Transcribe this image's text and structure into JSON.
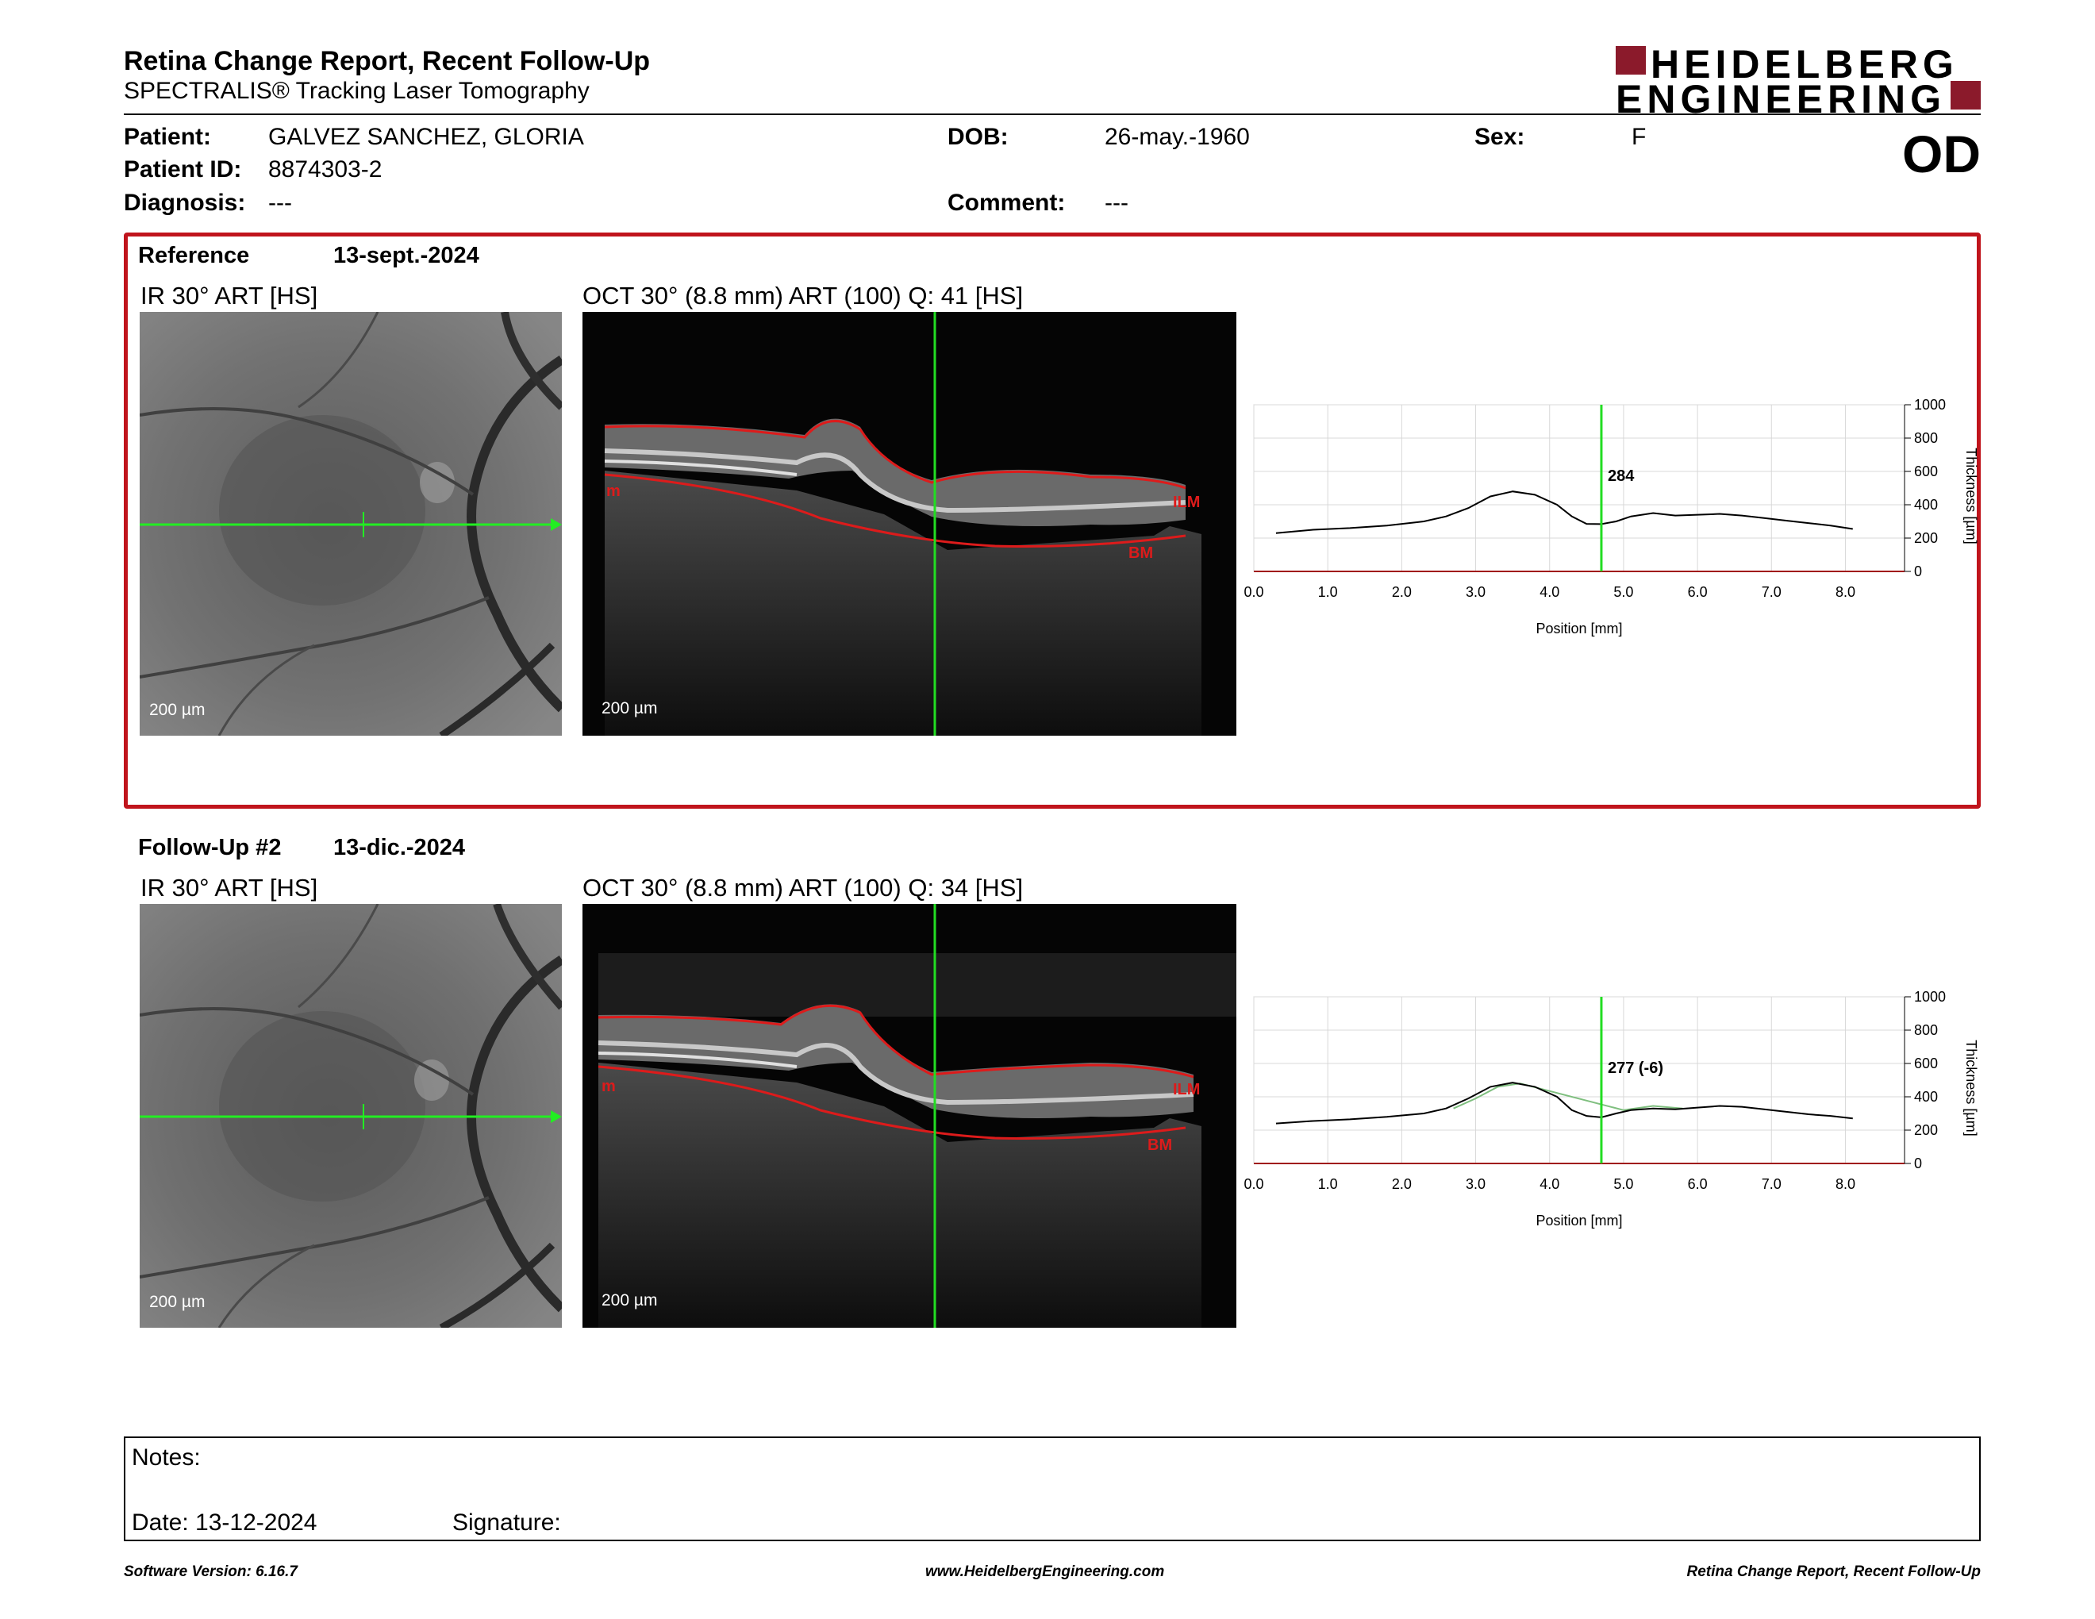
{
  "header": {
    "title": "Retina Change Report, Recent Follow-Up",
    "subtitle": "SPECTRALIS® Tracking Laser Tomography",
    "logo_line1": "HEIDELBERG",
    "logo_line2": "ENGINEERING",
    "eye": "OD"
  },
  "patient": {
    "name_label": "Patient:",
    "name": "GALVEZ SANCHEZ, GLORIA",
    "id_label": "Patient ID:",
    "id": "8874303-2",
    "diagnosis_label": "Diagnosis:",
    "diagnosis": "---",
    "dob_label": "DOB:",
    "dob": "26-may.-1960",
    "comment_label": "Comment:",
    "comment": "---",
    "sex_label": "Sex:",
    "sex": "F"
  },
  "reference": {
    "label": "Reference",
    "date": "13-sept.-2024",
    "ir_label": "IR 30° ART [HS]",
    "oct_label": "OCT 30° (8.8 mm) ART (100) Q: 41 [HS]",
    "scale_ir": "200 µm",
    "scale_oct": "200 µm",
    "layer_top": "ILM",
    "layer_bottom": "BM",
    "layer_left": "m",
    "value_label": "284"
  },
  "followup": {
    "label": "Follow-Up #2",
    "date": "13-dic.-2024",
    "ir_label": "IR 30° ART [HS]",
    "oct_label": "OCT 30° (8.8 mm) ART (100) Q: 34 [HS]",
    "scale_ir": "200 µm",
    "scale_oct": "200 µm",
    "layer_top": "ILM",
    "layer_bottom": "BM",
    "layer_left": "m",
    "value_label": "277 (-6)"
  },
  "chart_data": [
    {
      "type": "line",
      "title": "",
      "xlabel": "Position [mm]",
      "ylabel": "Thickness [µm]",
      "xlim": [
        0,
        8.8
      ],
      "ylim": [
        0,
        1000
      ],
      "xticks": [
        "0.0",
        "1.0",
        "2.0",
        "3.0",
        "4.0",
        "5.0",
        "6.0",
        "7.0",
        "8.0"
      ],
      "yticks": [
        "0",
        "200",
        "400",
        "600",
        "800",
        "1000"
      ],
      "grid": true,
      "cursor_x": 4.7,
      "series": [
        {
          "color": "#000000",
          "x": [
            0.3,
            0.8,
            1.3,
            1.8,
            2.3,
            2.6,
            2.9,
            3.2,
            3.5,
            3.8,
            4.1,
            4.3,
            4.5,
            4.7,
            4.9,
            5.1,
            5.4,
            5.7,
            6.0,
            6.3,
            6.6,
            6.9,
            7.2,
            7.5,
            7.8,
            8.1
          ],
          "y": [
            230,
            250,
            260,
            275,
            300,
            330,
            380,
            450,
            480,
            460,
            400,
            330,
            285,
            284,
            300,
            330,
            350,
            335,
            340,
            345,
            335,
            320,
            305,
            290,
            275,
            255
          ]
        }
      ]
    },
    {
      "type": "line",
      "title": "",
      "xlabel": "Position [mm]",
      "ylabel": "Thickness [µm]",
      "xlim": [
        0,
        8.8
      ],
      "ylim": [
        0,
        1000
      ],
      "xticks": [
        "0.0",
        "1.0",
        "2.0",
        "3.0",
        "4.0",
        "5.0",
        "6.0",
        "7.0",
        "8.0"
      ],
      "yticks": [
        "0",
        "200",
        "400",
        "600",
        "800",
        "1000"
      ],
      "grid": true,
      "cursor_x": 4.7,
      "series": [
        {
          "color": "#000000",
          "x": [
            0.3,
            0.8,
            1.3,
            1.8,
            2.3,
            2.6,
            2.9,
            3.2,
            3.5,
            3.8,
            4.1,
            4.3,
            4.5,
            4.7,
            4.9,
            5.1,
            5.4,
            5.7,
            6.0,
            6.3,
            6.6,
            6.9,
            7.2,
            7.5,
            7.8,
            8.1
          ],
          "y": [
            240,
            255,
            265,
            280,
            300,
            330,
            390,
            460,
            485,
            460,
            400,
            320,
            285,
            277,
            300,
            320,
            330,
            325,
            335,
            345,
            340,
            325,
            310,
            295,
            285,
            270
          ]
        },
        {
          "color": "#7fbf7f",
          "x": [
            2.7,
            3.0,
            3.3,
            3.6,
            5.0,
            5.4,
            5.8
          ],
          "y": [
            330,
            390,
            460,
            480,
            320,
            345,
            330
          ]
        }
      ]
    }
  ],
  "notes": {
    "notes_label": "Notes:",
    "date_label": "Date: 13-12-2024",
    "signature_label": "Signature:"
  },
  "footer": {
    "left": "Software Version: 6.16.7",
    "center": "www.HeidelbergEngineering.com",
    "right": "Retina Change Report, Recent Follow-Up"
  }
}
